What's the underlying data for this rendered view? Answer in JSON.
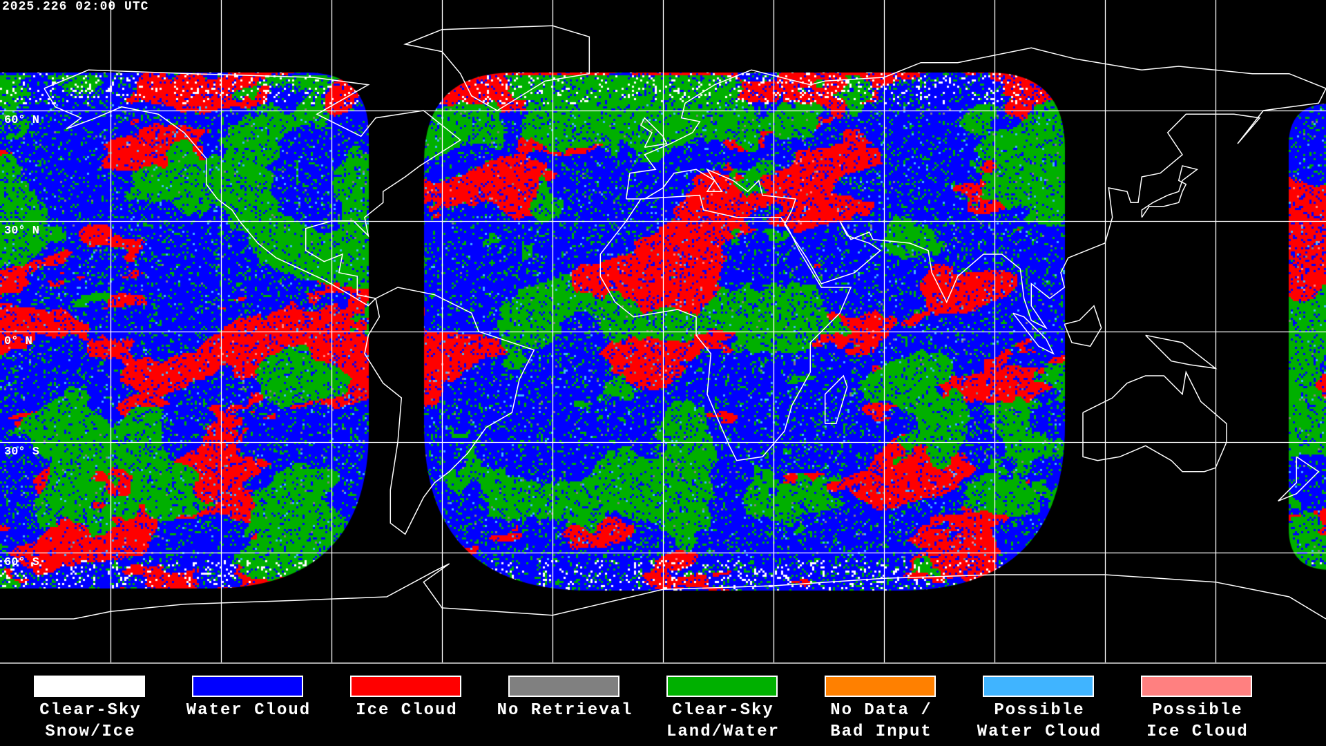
{
  "header": {
    "timestamp": "2025.226 02:00 UTC"
  },
  "map": {
    "projection": "equirectangular",
    "grid_spacing_deg": 30,
    "lat_labels": [
      "60° N",
      "30° N",
      "0° N",
      "30° S",
      "60° S"
    ],
    "background_color": "#000000",
    "grid_color": "#ffffff",
    "coastline_color": "#ffffff"
  },
  "legend": {
    "items": [
      {
        "line1": "Clear-Sky",
        "line2": "Snow/Ice",
        "color": "#ffffff"
      },
      {
        "line1": "Water Cloud",
        "line2": "",
        "color": "#0000ff"
      },
      {
        "line1": "Ice Cloud",
        "line2": "",
        "color": "#ff0000"
      },
      {
        "line1": "No Retrieval",
        "line2": "",
        "color": "#808080"
      },
      {
        "line1": "Clear-Sky",
        "line2": "Land/Water",
        "color": "#00b000"
      },
      {
        "line1": "No Data /",
        "line2": "Bad Input",
        "color": "#ff8000"
      },
      {
        "line1": "Possible",
        "line2": "Water Cloud",
        "color": "#40b4ff"
      },
      {
        "line1": "Possible",
        "line2": "Ice Cloud",
        "color": "#ff8080"
      }
    ]
  }
}
